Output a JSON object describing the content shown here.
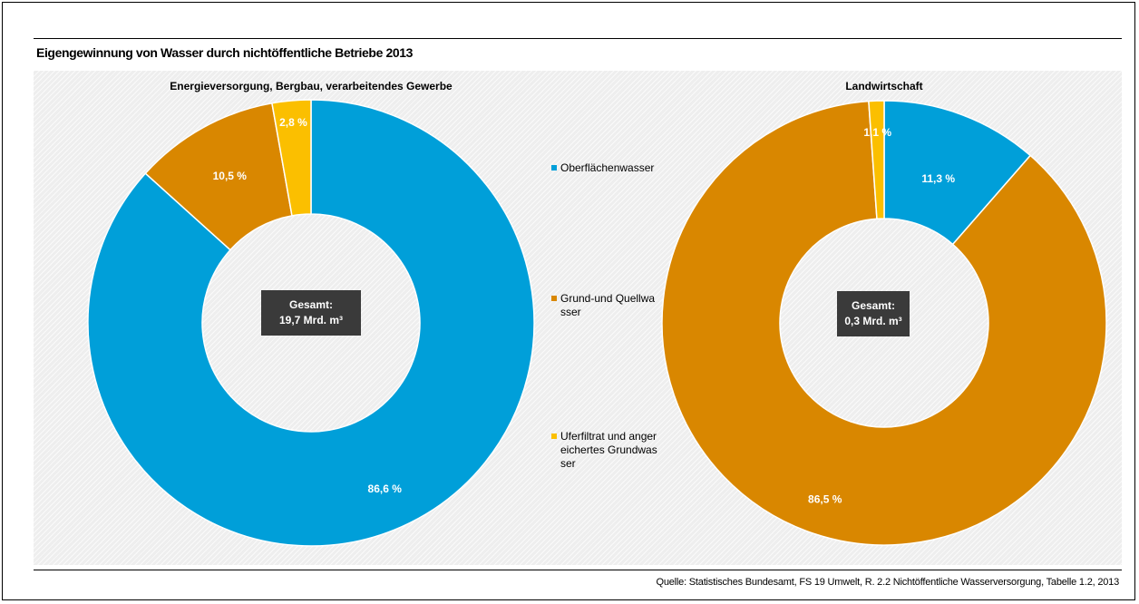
{
  "title": "Eigengewinnung von Wasser durch nichtöffentliche Betriebe 2013",
  "source": "Quelle: Statistisches Bundesamt, FS 19 Umwelt, R. 2.2 Nichtöffentliche Wasserversorgung, Tabelle 1.2, 2013",
  "legend": {
    "items": [
      {
        "label": "Oberflächenwasser",
        "color": "#009fd9"
      },
      {
        "label": "Grund-und Quellwasser",
        "color": "#d98700"
      },
      {
        "label": "Uferfiltrat und angereichertes Grundwasser",
        "color": "#fbbf00"
      }
    ]
  },
  "chart_data": [
    {
      "type": "pie",
      "style": "donut",
      "title": "Energieversorgung, Bergbau, verarbeitendes Gewerbe",
      "center_label": {
        "line1": "Gesamt:",
        "line2": "19,7 Mrd. m³"
      },
      "categories": [
        "Oberflächenwasser",
        "Grund-und Quellwasser",
        "Uferfiltrat und angereichertes Grundwasser"
      ],
      "values": [
        86.6,
        10.5,
        2.8
      ],
      "labels": [
        "86,6 %",
        "10,5 %",
        "2,8 %"
      ],
      "colors": [
        "#009fd9",
        "#d98700",
        "#fbbf00"
      ]
    },
    {
      "type": "pie",
      "style": "donut",
      "title": "Landwirtschaft",
      "center_label": {
        "line1": "Gesamt:",
        "line2": "0,3 Mrd. m³"
      },
      "categories": [
        "Oberflächenwasser",
        "Grund-und Quellwasser",
        "Uferfiltrat und angereichertes Grundwasser"
      ],
      "values": [
        11.3,
        86.5,
        1.1
      ],
      "labels": [
        "11,3 %",
        "86,5 %",
        "1,1 %"
      ],
      "colors": [
        "#009fd9",
        "#d98700",
        "#fbbf00"
      ]
    }
  ]
}
